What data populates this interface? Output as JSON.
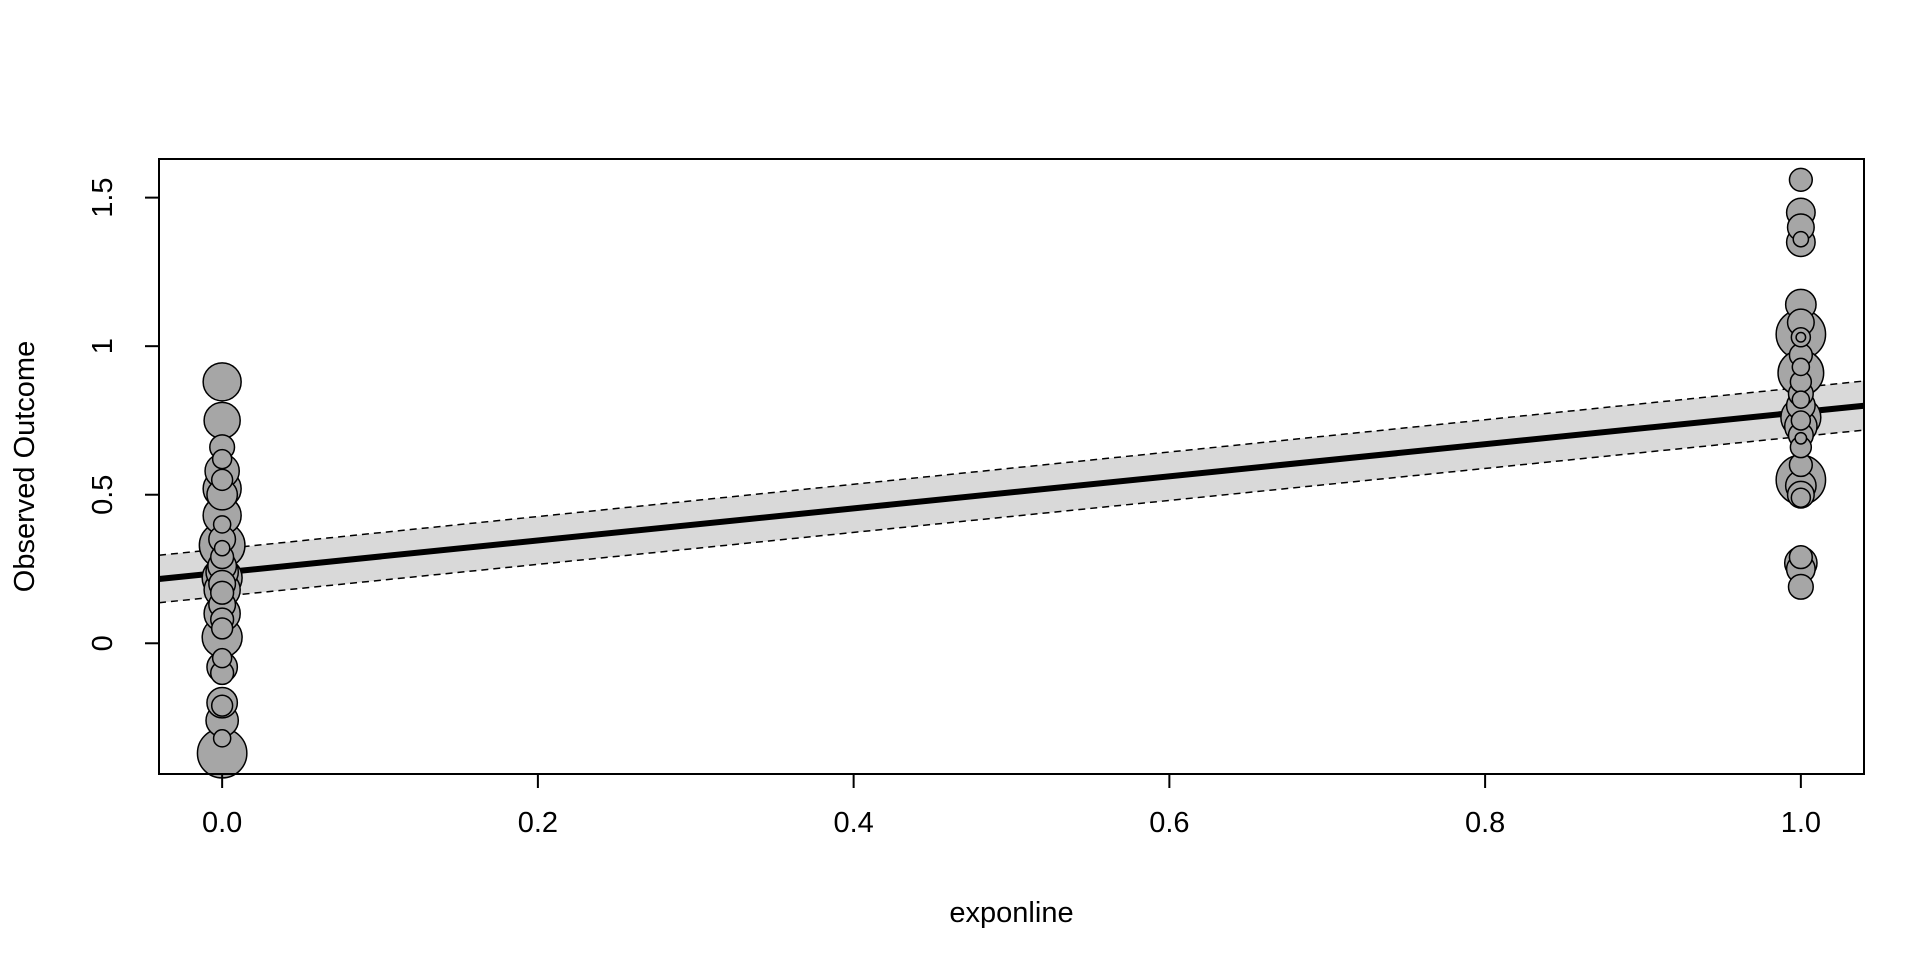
{
  "chart_data": {
    "type": "scatter",
    "title": "",
    "xlabel": "exponline",
    "ylabel": "Observed Outcome",
    "xlim": [
      -0.04,
      1.04
    ],
    "ylim": [
      -0.44,
      1.63
    ],
    "xticks": [
      0.0,
      0.2,
      0.4,
      0.6,
      0.8,
      1.0
    ],
    "xtick_labels": [
      "0.0",
      "0.2",
      "0.4",
      "0.6",
      "0.8",
      "1.0"
    ],
    "yticks": [
      0,
      0.5,
      1,
      1.5
    ],
    "ytick_labels": [
      "0",
      "0.5",
      "1",
      "1.5"
    ],
    "grid": false,
    "colors": {
      "point_fill": "#a6a6a6",
      "point_stroke": "#000000",
      "band": "#d9d9d9",
      "line": "#000000"
    },
    "regression": {
      "intercept": 0.238,
      "slope": 0.54
    },
    "confidence_band": {
      "lower_intercept": 0.158,
      "lower_slope": 0.538,
      "upper_intercept": 0.318,
      "upper_slope": 0.543
    },
    "points": [
      {
        "x": 0,
        "y": 0.88,
        "size": 1.0
      },
      {
        "x": 0,
        "y": 0.75,
        "size": 0.95
      },
      {
        "x": 0,
        "y": 0.66,
        "size": 0.65
      },
      {
        "x": 0,
        "y": 0.62,
        "size": 0.5
      },
      {
        "x": 0,
        "y": 0.58,
        "size": 0.9
      },
      {
        "x": 0,
        "y": 0.55,
        "size": 0.55
      },
      {
        "x": 0,
        "y": 0.52,
        "size": 1.0
      },
      {
        "x": 0,
        "y": 0.5,
        "size": 0.8
      },
      {
        "x": 0,
        "y": 0.43,
        "size": 1.0
      },
      {
        "x": 0,
        "y": 0.4,
        "size": 0.45
      },
      {
        "x": 0,
        "y": 0.35,
        "size": 0.7
      },
      {
        "x": 0,
        "y": 0.33,
        "size": 1.2
      },
      {
        "x": 0,
        "y": 0.32,
        "size": 0.4
      },
      {
        "x": 0,
        "y": 0.29,
        "size": 0.6
      },
      {
        "x": 0,
        "y": 0.26,
        "size": 0.75
      },
      {
        "x": 0,
        "y": 0.24,
        "size": 0.85
      },
      {
        "x": 0,
        "y": 0.22,
        "size": 1.05
      },
      {
        "x": 0,
        "y": 0.2,
        "size": 0.7
      },
      {
        "x": 0,
        "y": 0.18,
        "size": 0.95
      },
      {
        "x": 0,
        "y": 0.17,
        "size": 0.6
      },
      {
        "x": 0,
        "y": 0.13,
        "size": 0.7
      },
      {
        "x": 0,
        "y": 0.1,
        "size": 0.95
      },
      {
        "x": 0,
        "y": 0.08,
        "size": 0.6
      },
      {
        "x": 0,
        "y": 0.05,
        "size": 0.55
      },
      {
        "x": 0,
        "y": 0.02,
        "size": 1.05
      },
      {
        "x": 0,
        "y": -0.05,
        "size": 0.5
      },
      {
        "x": 0,
        "y": -0.08,
        "size": 0.8
      },
      {
        "x": 0,
        "y": -0.1,
        "size": 0.6
      },
      {
        "x": 0,
        "y": -0.2,
        "size": 0.8
      },
      {
        "x": 0,
        "y": -0.21,
        "size": 0.55
      },
      {
        "x": 0,
        "y": -0.26,
        "size": 0.85
      },
      {
        "x": 0,
        "y": -0.32,
        "size": 0.45
      },
      {
        "x": 0,
        "y": -0.37,
        "size": 1.3
      },
      {
        "x": 1,
        "y": 1.56,
        "size": 0.6
      },
      {
        "x": 1,
        "y": 1.45,
        "size": 0.75
      },
      {
        "x": 1,
        "y": 1.4,
        "size": 0.7
      },
      {
        "x": 1,
        "y": 1.35,
        "size": 0.75
      },
      {
        "x": 1,
        "y": 1.36,
        "size": 0.4
      },
      {
        "x": 1,
        "y": 1.14,
        "size": 0.8
      },
      {
        "x": 1,
        "y": 1.08,
        "size": 0.7
      },
      {
        "x": 1,
        "y": 1.04,
        "size": 1.3
      },
      {
        "x": 1,
        "y": 1.03,
        "size": 0.5
      },
      {
        "x": 1,
        "y": 1.03,
        "size": 0.25
      },
      {
        "x": 1,
        "y": 0.97,
        "size": 0.6
      },
      {
        "x": 1,
        "y": 0.93,
        "size": 0.45
      },
      {
        "x": 1,
        "y": 0.91,
        "size": 1.2
      },
      {
        "x": 1,
        "y": 0.88,
        "size": 0.55
      },
      {
        "x": 1,
        "y": 0.84,
        "size": 0.65
      },
      {
        "x": 1,
        "y": 0.82,
        "size": 0.45
      },
      {
        "x": 1,
        "y": 0.8,
        "size": 0.75
      },
      {
        "x": 1,
        "y": 0.76,
        "size": 1.05
      },
      {
        "x": 1,
        "y": 0.75,
        "size": 0.5
      },
      {
        "x": 1,
        "y": 0.73,
        "size": 0.85
      },
      {
        "x": 1,
        "y": 0.7,
        "size": 0.65
      },
      {
        "x": 1,
        "y": 0.69,
        "size": 0.3
      },
      {
        "x": 1,
        "y": 0.66,
        "size": 0.55
      },
      {
        "x": 1,
        "y": 0.6,
        "size": 0.6
      },
      {
        "x": 1,
        "y": 0.55,
        "size": 1.3
      },
      {
        "x": 1,
        "y": 0.53,
        "size": 0.8
      },
      {
        "x": 1,
        "y": 0.5,
        "size": 0.7
      },
      {
        "x": 1,
        "y": 0.49,
        "size": 0.5
      },
      {
        "x": 1,
        "y": 0.27,
        "size": 0.85
      },
      {
        "x": 1,
        "y": 0.25,
        "size": 0.75
      },
      {
        "x": 1,
        "y": 0.29,
        "size": 0.6
      },
      {
        "x": 1,
        "y": 0.19,
        "size": 0.65
      }
    ]
  }
}
